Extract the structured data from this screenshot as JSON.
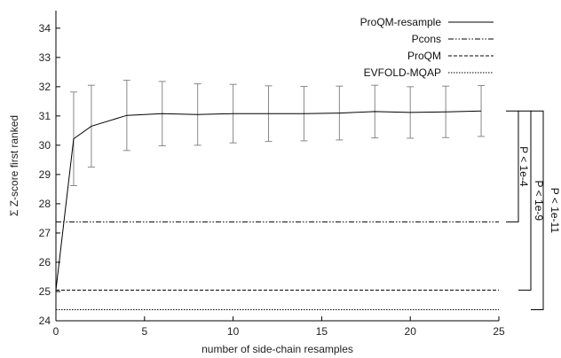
{
  "chart_data": {
    "type": "line",
    "title": "",
    "xlabel": "number of side-chain resamples",
    "ylabel": "Σ Z-score first ranked",
    "xlim": [
      0,
      25
    ],
    "ylim": [
      24,
      34.6
    ],
    "xticks": [
      0,
      5,
      10,
      15,
      20,
      25
    ],
    "yticks": [
      24,
      25,
      26,
      27,
      28,
      29,
      30,
      31,
      32,
      33,
      34
    ],
    "grid": false,
    "legend_position": "top-right",
    "series": [
      {
        "name": "ProQM-resample",
        "style": "solid",
        "x": [
          0,
          1,
          2,
          4,
          6,
          8,
          10,
          12,
          14,
          16,
          18,
          20,
          22,
          24
        ],
        "y": [
          25.05,
          30.22,
          30.65,
          31.02,
          31.08,
          31.05,
          31.08,
          31.08,
          31.08,
          31.1,
          31.15,
          31.12,
          31.14,
          31.17
        ],
        "err": [
          0,
          1.6,
          1.4,
          1.2,
          1.1,
          1.05,
          1.0,
          0.95,
          0.93,
          0.92,
          0.9,
          0.88,
          0.88,
          0.87
        ]
      },
      {
        "name": "Pcons",
        "style": "dash-dot",
        "y_const": 27.38
      },
      {
        "name": "ProQM",
        "style": "dashed",
        "y_const": 25.05
      },
      {
        "name": "EVFOLD-MQAP",
        "style": "dotted",
        "y_const": 24.38
      }
    ],
    "annotations": [
      {
        "text": "P < 1e-4",
        "from_y": 31.17,
        "to_y": 27.38
      },
      {
        "text": "P < 1e-9",
        "from_y": 31.17,
        "to_y": 25.05
      },
      {
        "text": "P < 1e-11",
        "from_y": 31.17,
        "to_y": 24.38
      }
    ]
  }
}
